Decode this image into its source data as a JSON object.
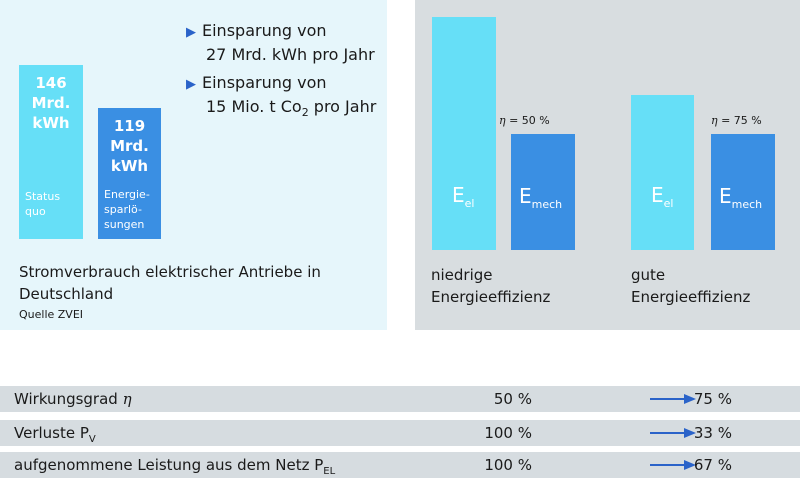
{
  "left": {
    "bullets": [
      {
        "line1": "Einsparung von",
        "line2": "27 Mrd. kWh pro Jahr"
      },
      {
        "line1": "Einsparung von",
        "line2_pre": "15 Mio. t Co",
        "line2_sub": "2",
        "line2_post": " pro Jahr"
      }
    ],
    "caption_line1": "Stromverbrauch elektrischer Antriebe in",
    "caption_line2": "Deutschland",
    "source": "Quelle ZVEI"
  },
  "chart_data": [
    {
      "type": "bar",
      "categories": [
        "Status quo",
        "Energiesparlösungen"
      ],
      "values": [
        146,
        119
      ],
      "unit": "Mrd. kWh",
      "bars": [
        {
          "value_label": "146",
          "unit_line1": "Mrd.",
          "unit_line2": "kWh",
          "cat_line1": "Status",
          "cat_line2": "quo",
          "color": "#66dff7"
        },
        {
          "value_label": "119",
          "unit_line1": "Mrd.",
          "unit_line2": "kWh",
          "cat_line1": "Energie-",
          "cat_line2": "sparlö-",
          "cat_line3": "sungen",
          "color": "#3a8fe3"
        }
      ]
    },
    {
      "type": "bar",
      "groups": [
        {
          "name_line1": "niedrige",
          "name_line2": "Energieeffizienz",
          "eta_symbol": "η",
          "eta_value": "= 50 %",
          "efficiency": 0.5,
          "e_el": {
            "base": "E",
            "sub": "el",
            "color": "#66dff7"
          },
          "e_mech": {
            "base": "E",
            "sub": "mech",
            "color": "#3a8fe3"
          }
        },
        {
          "name_line1": "gute",
          "name_line2": "Energieeffizienz",
          "eta_symbol": "η",
          "eta_value": "= 75 %",
          "efficiency": 0.75,
          "e_el": {
            "base": "E",
            "sub": "el",
            "color": "#66dff7"
          },
          "e_mech": {
            "base": "E",
            "sub": "mech",
            "color": "#3a8fe3"
          }
        }
      ]
    }
  ],
  "table": {
    "rows": [
      {
        "name_pre": "Wirkungsgrad ",
        "symbol": "η",
        "name_sub": "",
        "from": "50 %",
        "to": "75 %"
      },
      {
        "name_pre": "Verluste P",
        "symbol": "",
        "name_sub": "V",
        "from": "100 %",
        "to": "33 %"
      },
      {
        "name_pre": "aufgenommene Leistung aus dem Netz P",
        "symbol": "",
        "name_sub": "EL",
        "from": "100 %",
        "to": "67 %"
      }
    ],
    "arrow_color": "#2a63c9"
  }
}
